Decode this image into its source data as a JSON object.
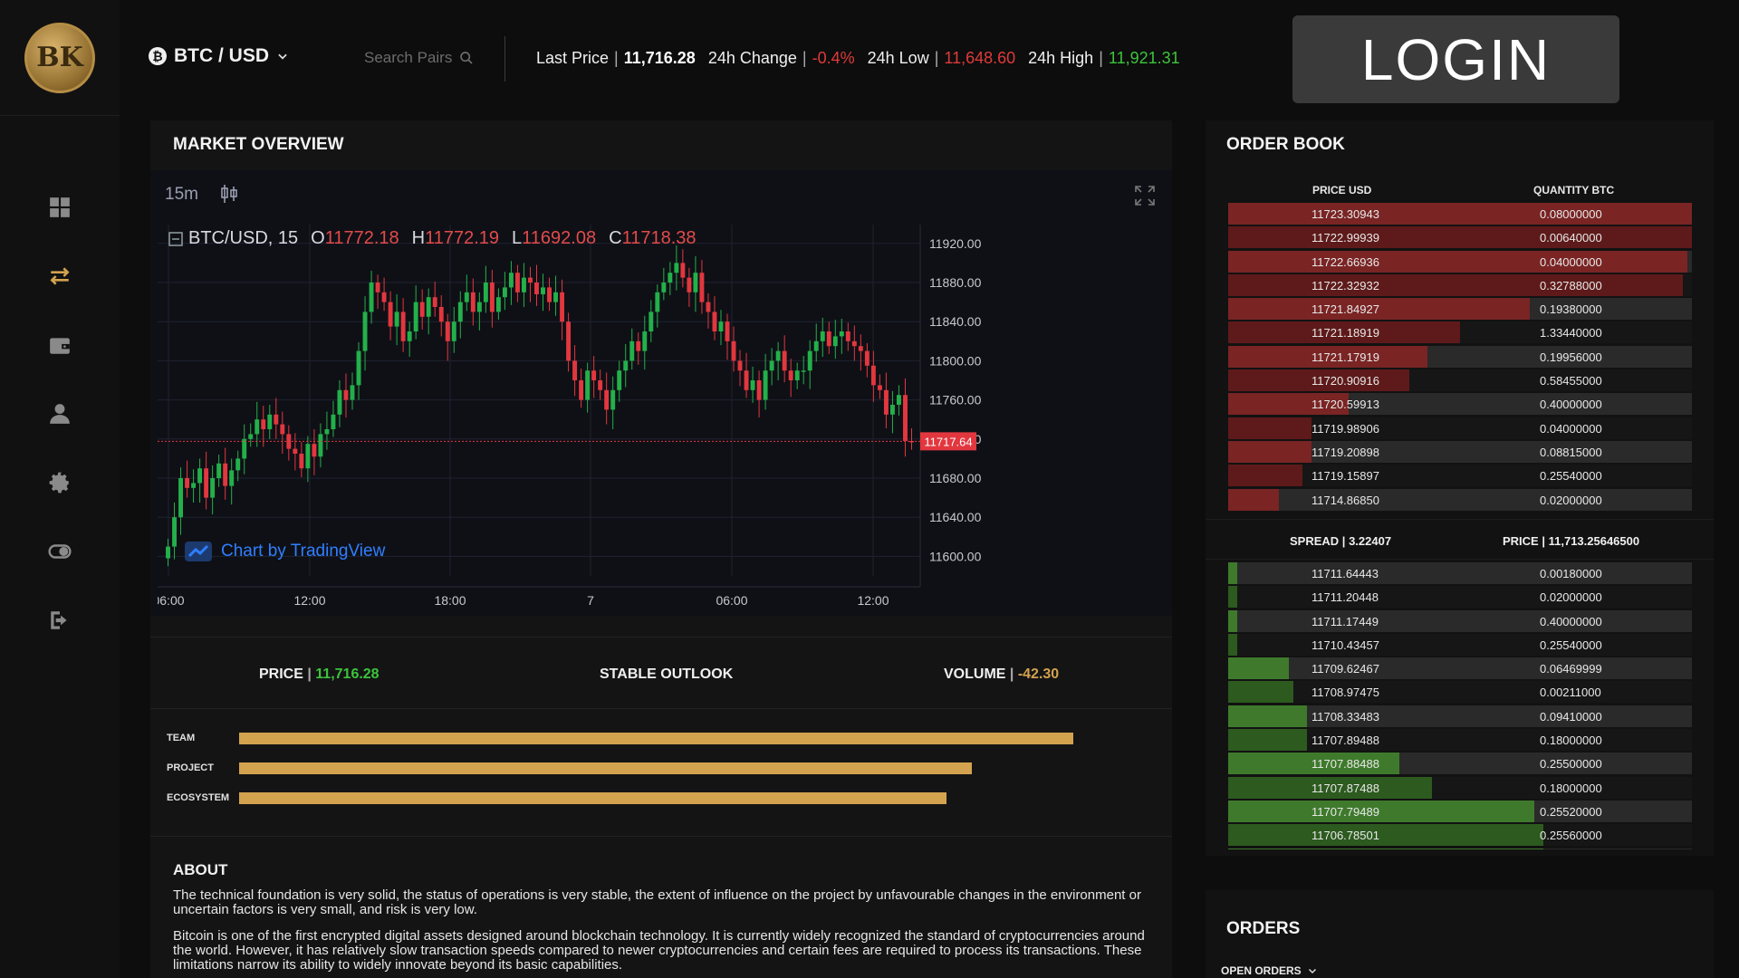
{
  "app": {
    "logo_text": "BK"
  },
  "header": {
    "pair": "BTC / USD",
    "search_placeholder": "Search Pairs",
    "last_price_label": "Last Price",
    "last_price": "11,716.28",
    "change_label": "24h Change",
    "change": "-0.4%",
    "low_label": "24h Low",
    "low": "11,648.60",
    "high_label": "24h High",
    "high": "11,921.31",
    "login_label": "LOGIN"
  },
  "sidebar": {
    "items": [
      "dashboard-icon",
      "exchange-icon",
      "wallet-icon",
      "user-icon",
      "settings-icon",
      "toggle-icon",
      "logout-icon"
    ]
  },
  "market": {
    "title": "MARKET OVERVIEW",
    "timeframe": "15m",
    "symbol": "BTC/USD, 15",
    "o_label": "O",
    "o": "11772.18",
    "h_label": "H",
    "h": "11772.19",
    "l_label": "L",
    "l": "11692.08",
    "c_label": "C",
    "c": "11718.38",
    "attribution": "Chart by TradingView",
    "price_label": "PRICE",
    "price": "11,716.28",
    "outlook": "STABLE OUTLOOK",
    "volume_label": "VOLUME",
    "volume": "-42.30"
  },
  "chart_data": {
    "type": "candlestick",
    "y_ticks": [
      "11920.00",
      "11880.00",
      "11840.00",
      "11800.00",
      "11760.00",
      "11720.00",
      "11680.00",
      "11640.00",
      "11600.00"
    ],
    "ylim": [
      11580,
      11930
    ],
    "x_ticks": [
      "06:00",
      "12:00",
      "18:00",
      "7",
      "06:00",
      "12:00"
    ],
    "last_price_tag": "11717.64",
    "last_price_value": 11717.64,
    "closes": [
      11610,
      11640,
      11680,
      11670,
      11675,
      11690,
      11660,
      11680,
      11695,
      11672,
      11688,
      11700,
      11720,
      11725,
      11740,
      11730,
      11745,
      11735,
      11725,
      11710,
      11705,
      11690,
      11715,
      11702,
      11725,
      11730,
      11745,
      11770,
      11760,
      11775,
      11810,
      11850,
      11880,
      11870,
      11860,
      11835,
      11850,
      11820,
      11830,
      11860,
      11845,
      11865,
      11855,
      11840,
      11820,
      11840,
      11860,
      11870,
      11850,
      11860,
      11880,
      11850,
      11865,
      11875,
      11890,
      11870,
      11885,
      11880,
      11868,
      11875,
      11860,
      11870,
      11840,
      11800,
      11780,
      11760,
      11790,
      11780,
      11770,
      11750,
      11770,
      11790,
      11800,
      11820,
      11810,
      11830,
      11850,
      11870,
      11880,
      11890,
      11900,
      11885,
      11870,
      11890,
      11860,
      11850,
      11830,
      11840,
      11820,
      11800,
      11790,
      11770,
      11780,
      11760,
      11790,
      11800,
      11810,
      11790,
      11780,
      11790,
      11790,
      11810,
      11820,
      11830,
      11815,
      11825,
      11830,
      11820,
      11815,
      11810,
      11795,
      11775,
      11770,
      11745,
      11755,
      11765,
      11718,
      11717
    ]
  },
  "ratings": [
    {
      "label": "TEAM",
      "value": 0.99
    },
    {
      "label": "PROJECT",
      "value": 0.87
    },
    {
      "label": "ECOSYSTEM",
      "value": 0.84
    }
  ],
  "about": {
    "title": "ABOUT",
    "p1": "The technical foundation is very solid, the status of operations is very stable, the extent of influence on the project by unfavourable changes in the environment or uncertain factors is very small, and risk is very low.",
    "p2": "Bitcoin is one of the first encrypted digital assets designed around blockchain technology. It is currently widely recognized the standard of cryptocurrencies around the world. However, it has relatively slow transaction speeds compared to newer cryptocurrencies and certain fees are required to process its transactions. These limitations narrow its ability to widely innovate beyond its basic capabilities."
  },
  "order_book": {
    "title": "ORDER BOOK",
    "col_price": "PRICE USD",
    "col_qty": "QUANTITY BTC",
    "asks": [
      {
        "price": "11723.30943",
        "qty": "0.08000000",
        "depth": 1.0
      },
      {
        "price": "11722.99939",
        "qty": "0.00640000",
        "depth": 1.0
      },
      {
        "price": "11722.66936",
        "qty": "0.04000000",
        "depth": 0.99
      },
      {
        "price": "11722.32932",
        "qty": "0.32788000",
        "depth": 0.98
      },
      {
        "price": "11721.84927",
        "qty": "0.19380000",
        "depth": 0.65
      },
      {
        "price": "11721.18919",
        "qty": "1.33440000",
        "depth": 0.5
      },
      {
        "price": "11721.17919",
        "qty": "0.19956000",
        "depth": 0.43
      },
      {
        "price": "11720.90916",
        "qty": "0.58455000",
        "depth": 0.39
      },
      {
        "price": "11720.59913",
        "qty": "0.40000000",
        "depth": 0.26
      },
      {
        "price": "11719.98906",
        "qty": "0.04000000",
        "depth": 0.18
      },
      {
        "price": "11719.20898",
        "qty": "0.08815000",
        "depth": 0.18
      },
      {
        "price": "11719.15897",
        "qty": "0.25540000",
        "depth": 0.16
      },
      {
        "price": "11714.86850",
        "qty": "0.02000000",
        "depth": 0.11
      }
    ],
    "spread_label": "SPREAD",
    "spread": "3.22407",
    "mid_label": "PRICE",
    "mid": "11,713.25646500",
    "bids": [
      {
        "price": "11711.64443",
        "qty": "0.00180000",
        "depth": 0.02
      },
      {
        "price": "11711.20448",
        "qty": "0.02000000",
        "depth": 0.02
      },
      {
        "price": "11711.17449",
        "qty": "0.40000000",
        "depth": 0.02
      },
      {
        "price": "11710.43457",
        "qty": "0.25540000",
        "depth": 0.02
      },
      {
        "price": "11709.62467",
        "qty": "0.06469999",
        "depth": 0.13
      },
      {
        "price": "11708.97475",
        "qty": "0.00211000",
        "depth": 0.14
      },
      {
        "price": "11708.33483",
        "qty": "0.09410000",
        "depth": 0.17
      },
      {
        "price": "11707.89488",
        "qty": "0.18000000",
        "depth": 0.17
      },
      {
        "price": "11707.88488",
        "qty": "0.25500000",
        "depth": 0.37
      },
      {
        "price": "11707.87488",
        "qty": "0.18000000",
        "depth": 0.44
      },
      {
        "price": "11707.79489",
        "qty": "0.25520000",
        "depth": 0.66
      },
      {
        "price": "11706.78501",
        "qty": "0.25560000",
        "depth": 0.68
      },
      {
        "price": "11706.73502",
        "qty": "0.19758000",
        "depth": 0.68
      }
    ]
  },
  "orders": {
    "title": "ORDERS",
    "tab": "OPEN ORDERS"
  }
}
